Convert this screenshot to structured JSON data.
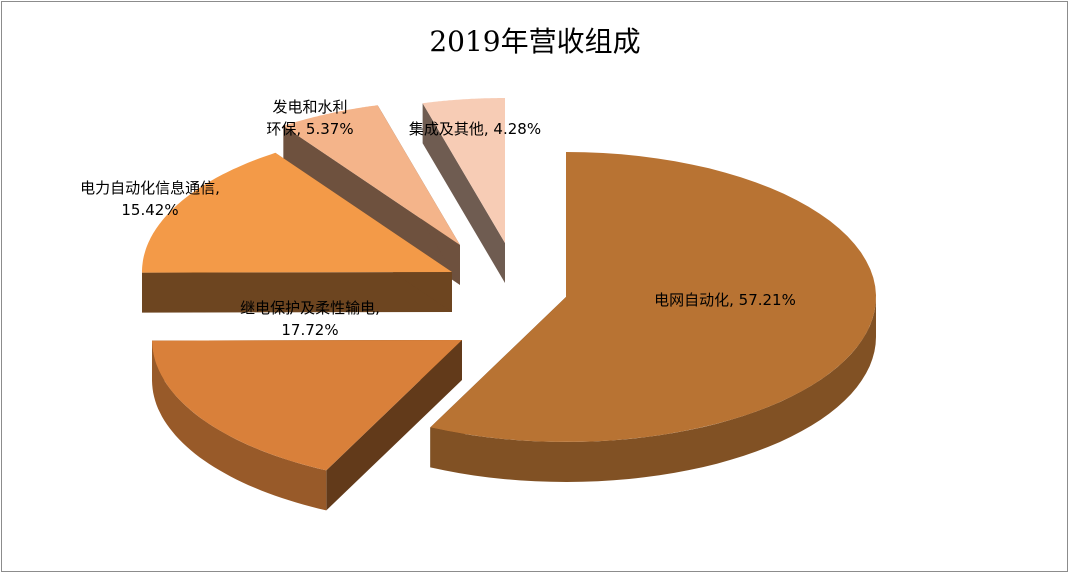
{
  "chart_data": {
    "type": "pie",
    "style": "3d-exploded",
    "title": "2019年营收组成",
    "legend": "none",
    "slices": [
      {
        "name": "电网自动化",
        "value": 57.21,
        "label_lines": [
          "电网自动化, 57.21%"
        ],
        "color": "#b87333"
      },
      {
        "name": "继电保护及柔性输电",
        "value": 17.72,
        "label_lines": [
          "继电保护及柔性输电,",
          "17.72%"
        ],
        "color": "#d9803a"
      },
      {
        "name": "电力自动化信息通信",
        "value": 15.42,
        "label_lines": [
          "电力自动化信息通信,",
          "15.42%"
        ],
        "color": "#f39a48"
      },
      {
        "name": "发电和水利环保",
        "value": 5.37,
        "label_lines": [
          "发电和水利",
          "环保, 5.37%"
        ],
        "color": "#f4b48a"
      },
      {
        "name": "集成及其他",
        "value": 4.28,
        "label_lines": [
          "集成及其他, 4.28%"
        ],
        "color": "#f7ccb5"
      }
    ]
  }
}
